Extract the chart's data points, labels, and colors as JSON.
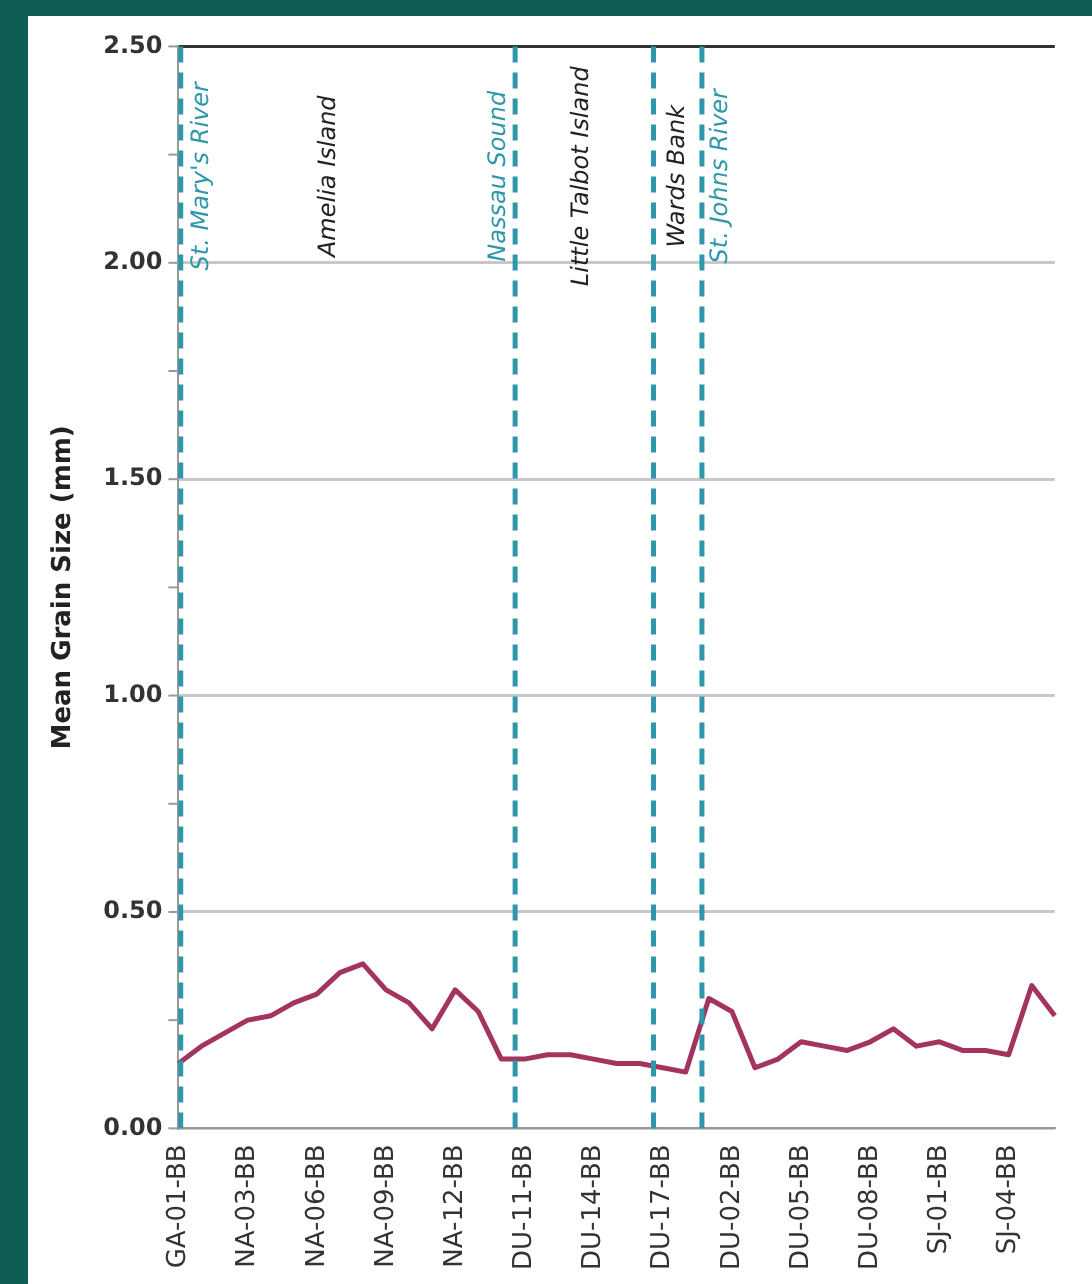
{
  "chart_data": {
    "type": "line",
    "ylabel": "Mean Grain Size (mm)",
    "categories": [
      "GA-01-BB",
      null,
      null,
      "NA-03-BB",
      null,
      null,
      "NA-06-BB",
      null,
      null,
      "NA-09-BB",
      null,
      null,
      "NA-12-BB",
      null,
      null,
      "DU-11-BB",
      null,
      null,
      "DU-14-BB",
      null,
      null,
      "DU-17-BB",
      null,
      null,
      "DU-02-BB",
      null,
      null,
      "DU-05-BB",
      null,
      null,
      "DU-08-BB",
      null,
      null,
      "SJ-01-BB",
      null,
      null,
      "SJ-04-BB",
      null,
      null
    ],
    "series": [
      {
        "color": "#a3345f",
        "values": [
          0.15,
          0.19,
          0.22,
          0.25,
          0.26,
          0.29,
          0.31,
          0.36,
          0.38,
          0.32,
          0.29,
          0.23,
          0.32,
          0.27,
          0.16,
          0.16,
          0.17,
          0.17,
          0.16,
          0.15,
          0.15,
          0.14,
          0.13,
          0.3,
          0.27,
          0.14,
          0.16,
          0.2,
          0.19,
          0.18,
          0.2,
          0.23,
          0.19,
          0.2,
          0.18,
          0.18,
          0.17,
          0.33,
          0.26
        ]
      }
    ],
    "ylim": [
      0,
      2.5
    ],
    "yticks": [
      {
        "value": 0,
        "label": "0.00"
      },
      {
        "value": 0.25,
        "label": null
      },
      {
        "value": 0.5,
        "label": "0.50"
      },
      {
        "value": 0.75,
        "label": null
      },
      {
        "value": 1,
        "label": "1.00"
      },
      {
        "value": 1.25,
        "label": null
      },
      {
        "value": 1.5,
        "label": "1.50"
      },
      {
        "value": 1.75,
        "label": null
      },
      {
        "value": 2,
        "label": "2.00"
      },
      {
        "value": 2.25,
        "label": null
      },
      {
        "value": 2.5,
        "label": "2.50"
      }
    ],
    "grid": "y",
    "marker": "none",
    "line_style": "solid",
    "legend": false,
    "annotations": [
      "St. Mary's River",
      "Amelia Island",
      "Nassau Sound",
      "Little Talbot Island",
      "Wards Bank",
      "St. Johns River"
    ]
  }
}
